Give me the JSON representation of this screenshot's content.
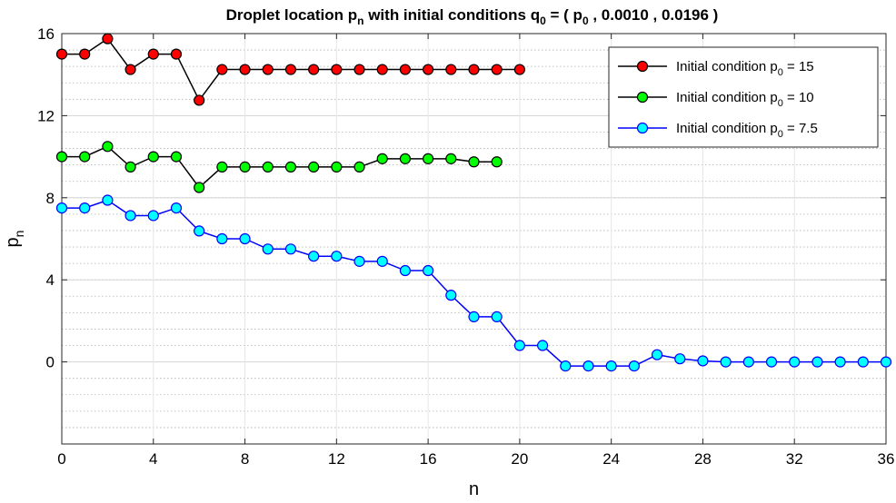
{
  "chart_data": {
    "type": "line",
    "title": {
      "parts": [
        {
          "t": "Droplet location p"
        },
        {
          "t": "n",
          "sub": true
        },
        {
          "t": " with initial conditions q"
        },
        {
          "t": "0",
          "sub": true
        },
        {
          "t": " = ( p"
        },
        {
          "t": "0",
          "sub": true
        },
        {
          "t": " , 0.0010 , 0.0196 )"
        }
      ]
    },
    "xlabel": "n",
    "ylabel": {
      "main": "p",
      "sub": "n"
    },
    "xlim": [
      0,
      36
    ],
    "ylim": [
      -4,
      16
    ],
    "x_ticks": [
      0,
      4,
      8,
      12,
      16,
      20,
      24,
      28,
      32,
      36
    ],
    "x_tick_labels": [
      "0",
      "4",
      "8",
      "12",
      "16",
      "20",
      "24",
      "28",
      "32",
      "36"
    ],
    "y_ticks": [
      0,
      4,
      8,
      12,
      16
    ],
    "y_tick_labels": [
      "0",
      "4",
      "8",
      "12",
      "16"
    ],
    "grid": "major and minor (y)",
    "legend_position": "top-right",
    "series": [
      {
        "name": {
          "prefix": "Initial condition p",
          "sub": "0",
          "suffix": " = 15"
        },
        "line_color": "#000000",
        "marker_color": "#ff0000",
        "x": [
          0,
          1,
          2,
          3,
          4,
          5,
          6,
          7,
          8,
          9,
          10,
          11,
          12,
          13,
          14,
          15,
          16,
          17,
          18,
          19,
          20
        ],
        "y": [
          15,
          15,
          15.75,
          14.25,
          15,
          15,
          12.75,
          14.25,
          14.25,
          14.25,
          14.25,
          14.25,
          14.25,
          14.25,
          14.25,
          14.25,
          14.25,
          14.25,
          14.25,
          14.25,
          14.25
        ]
      },
      {
        "name": {
          "prefix": "Initial condition p",
          "sub": "0",
          "suffix": " = 10"
        },
        "line_color": "#000000",
        "marker_color": "#00ff00",
        "x": [
          0,
          1,
          2,
          3,
          4,
          5,
          6,
          7,
          8,
          9,
          10,
          11,
          12,
          13,
          14,
          15,
          16,
          17,
          18,
          19
        ],
        "y": [
          10,
          10,
          10.5,
          9.5,
          10,
          10,
          8.5,
          9.5,
          9.5,
          9.5,
          9.5,
          9.5,
          9.5,
          9.5,
          9.9,
          9.9,
          9.9,
          9.9,
          9.75,
          9.75
        ]
      },
      {
        "name": {
          "prefix": "Initial condition p",
          "sub": "0",
          "suffix": " = 7.5"
        },
        "line_color": "#0000ff",
        "marker_color": "#00ffff",
        "x": [
          0,
          1,
          2,
          3,
          4,
          5,
          6,
          7,
          8,
          9,
          10,
          11,
          12,
          13,
          14,
          15,
          16,
          17,
          18,
          19,
          20,
          21,
          22,
          23,
          24,
          25,
          26,
          27,
          28,
          29,
          30,
          31,
          32,
          33,
          34,
          35,
          36
        ],
        "y": [
          7.5,
          7.5,
          7.88,
          7.13,
          7.13,
          7.5,
          6.38,
          6.0,
          6.0,
          5.5,
          5.5,
          5.15,
          5.15,
          4.9,
          4.9,
          4.45,
          4.45,
          3.25,
          2.2,
          2.2,
          0.8,
          0.8,
          -0.2,
          -0.2,
          -0.2,
          -0.2,
          0.35,
          0.15,
          0.05,
          0,
          0,
          0,
          0,
          0,
          0,
          0,
          0
        ]
      }
    ]
  }
}
